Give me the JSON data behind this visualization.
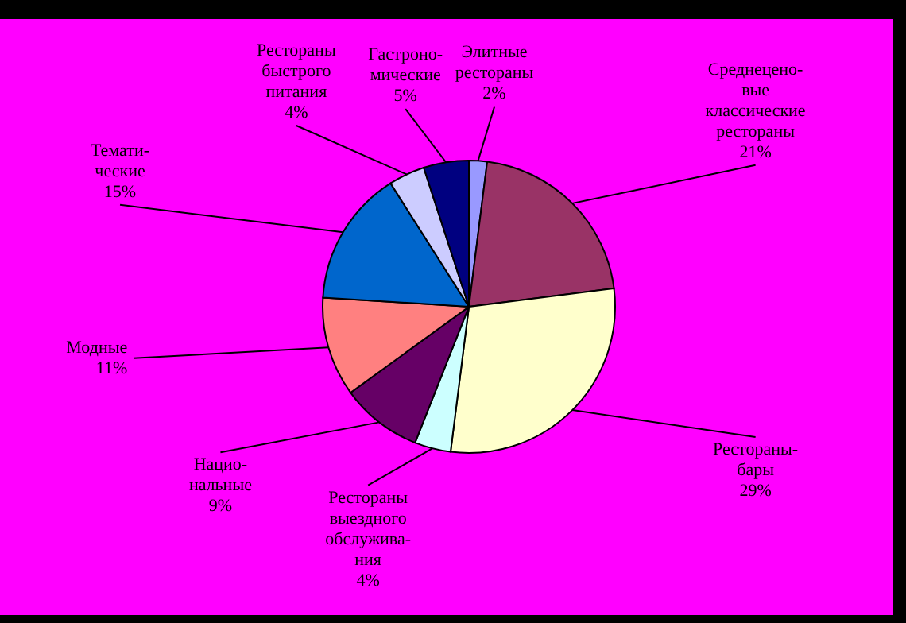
{
  "chart_data": {
    "type": "pie",
    "categories": [
      "Элитные\nрестораны",
      "Среднецено-\nвые\nклассические\nрестораны",
      "Рестораны-\nбары",
      "Рестораны\nвыездного\nобслужива-\nния",
      "Нацио-\nнальные",
      "Модные",
      "Темати-\nческие",
      "Рестораны\nбыстрого\nпитания",
      "Гастроно-\nмические"
    ],
    "values": [
      2,
      21,
      29,
      4,
      9,
      11,
      15,
      4,
      5
    ],
    "colors": [
      "#9999ff",
      "#993366",
      "#ffffcc",
      "#ccffff",
      "#660066",
      "#ff8080",
      "#0066cc",
      "#ccccff",
      "#000080"
    ],
    "value_labels": [
      "2%",
      "21%",
      "29%",
      "4%",
      "9%",
      "11%",
      "15%",
      "4%",
      "5%"
    ]
  }
}
